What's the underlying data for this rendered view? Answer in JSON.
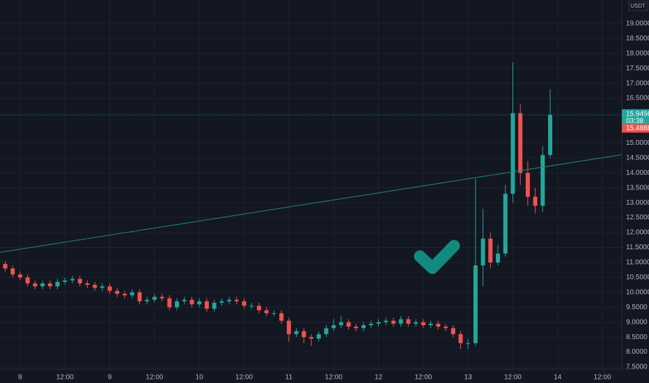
{
  "chart_data": {
    "type": "candlestick",
    "currency": "USDT",
    "up_color": "#26a69a",
    "down_color": "#ef5350",
    "grid": true,
    "open": [
      10.95,
      10.8,
      10.6,
      10.5,
      10.3,
      10.2,
      10.3,
      10.2,
      10.35,
      10.4,
      10.45,
      10.3,
      10.25,
      10.15,
      10.2,
      10.05,
      9.95,
      9.9,
      10.0,
      9.7,
      9.75,
      9.85,
      9.8,
      9.5,
      9.7,
      9.75,
      9.6,
      9.7,
      9.45,
      9.65,
      9.7,
      9.75,
      9.7,
      9.55,
      9.55,
      9.4,
      9.3,
      9.3,
      9.05,
      8.6,
      8.7,
      8.5,
      8.45,
      8.6,
      8.8,
      8.9,
      9.0,
      8.85,
      8.8,
      8.9,
      8.95,
      9.0,
      9.05,
      8.95,
      9.1,
      8.95,
      9.0,
      8.9,
      8.95,
      8.85,
      8.8,
      8.6,
      8.3,
      8.3,
      10.9,
      11.8,
      11.0,
      11.3,
      13.3,
      16.0,
      14.0,
      13.2,
      12.9,
      14.6
    ],
    "high": [
      11.05,
      10.9,
      10.7,
      10.6,
      10.4,
      10.4,
      10.4,
      10.45,
      10.5,
      10.55,
      10.55,
      10.4,
      10.35,
      10.3,
      10.3,
      10.15,
      10.05,
      10.1,
      10.1,
      9.85,
      9.95,
      9.95,
      9.9,
      9.8,
      9.85,
      9.85,
      9.8,
      9.8,
      9.75,
      9.8,
      9.85,
      9.85,
      9.8,
      9.65,
      9.65,
      9.5,
      9.4,
      9.4,
      9.15,
      8.8,
      8.8,
      8.6,
      8.7,
      8.9,
      9.1,
      9.2,
      9.1,
      8.95,
      9.0,
      9.05,
      9.1,
      9.15,
      9.15,
      9.2,
      9.2,
      9.1,
      9.1,
      9.05,
      9.05,
      8.95,
      8.9,
      8.7,
      8.45,
      13.8,
      12.8,
      12.0,
      11.6,
      13.6,
      17.7,
      16.3,
      14.4,
      13.5,
      14.9,
      16.8
    ],
    "low": [
      10.7,
      10.5,
      10.4,
      10.2,
      10.1,
      10.1,
      10.1,
      10.1,
      10.25,
      10.3,
      10.2,
      10.15,
      10.05,
      10.05,
      9.95,
      9.85,
      9.8,
      9.8,
      9.6,
      9.6,
      9.65,
      9.7,
      9.4,
      9.4,
      9.6,
      9.5,
      9.5,
      9.35,
      9.35,
      9.55,
      9.6,
      9.6,
      9.45,
      9.45,
      9.3,
      9.2,
      9.2,
      8.95,
      8.35,
      8.5,
      8.3,
      8.2,
      8.35,
      8.5,
      8.7,
      8.8,
      8.75,
      8.7,
      8.7,
      8.8,
      8.85,
      8.9,
      8.85,
      8.85,
      8.85,
      8.85,
      8.8,
      8.8,
      8.75,
      8.7,
      8.5,
      8.1,
      8.1,
      8.2,
      10.2,
      10.8,
      10.9,
      11.2,
      13.0,
      13.6,
      12.9,
      12.65,
      12.7,
      14.5
    ],
    "close": [
      10.8,
      10.6,
      10.5,
      10.3,
      10.2,
      10.3,
      10.2,
      10.35,
      10.4,
      10.45,
      10.3,
      10.25,
      10.15,
      10.2,
      10.05,
      9.95,
      9.9,
      10.0,
      9.7,
      9.75,
      9.85,
      9.8,
      9.5,
      9.7,
      9.75,
      9.6,
      9.7,
      9.45,
      9.65,
      9.7,
      9.75,
      9.7,
      9.55,
      9.55,
      9.4,
      9.3,
      9.3,
      9.05,
      8.6,
      8.7,
      8.5,
      8.45,
      8.6,
      8.8,
      8.9,
      9.0,
      8.85,
      8.8,
      8.9,
      8.95,
      9.0,
      9.05,
      8.95,
      9.1,
      8.95,
      9.0,
      8.9,
      8.95,
      8.85,
      8.8,
      8.6,
      8.3,
      8.3,
      10.9,
      11.8,
      11.0,
      11.3,
      13.3,
      16.0,
      14.0,
      13.2,
      12.9,
      14.6,
      15.9456
    ],
    "trendline": [
      11.34,
      14.61
    ],
    "last_price": 15.9456,
    "countdown": "03:38",
    "marker_price": 15.4888,
    "xlim": [
      -0.7,
      82.6
    ],
    "xticks": [
      {
        "value": 2,
        "label": "8"
      },
      {
        "value": 8,
        "label": "12:00"
      },
      {
        "value": 14,
        "label": "9"
      },
      {
        "value": 20,
        "label": "12:00"
      },
      {
        "value": 26,
        "label": "10"
      },
      {
        "value": 32,
        "label": "12:00"
      },
      {
        "value": 38,
        "label": "11"
      },
      {
        "value": 44,
        "label": "12:00"
      },
      {
        "value": 50,
        "label": "12"
      },
      {
        "value": 56,
        "label": "12:00"
      },
      {
        "value": 62,
        "label": "13"
      },
      {
        "value": 68,
        "label": "12:00"
      },
      {
        "value": 74,
        "label": "14"
      },
      {
        "value": 80,
        "label": "12:00"
      }
    ],
    "ylim": [
      7.43,
      19.79
    ],
    "yticks": [
      {
        "value": 7.5,
        "label": "7.5000"
      },
      {
        "value": 8,
        "label": "8.0000"
      },
      {
        "value": 8.5,
        "label": "8.5000"
      },
      {
        "value": 9,
        "label": "9.0000"
      },
      {
        "value": 9.5,
        "label": "9.5000"
      },
      {
        "value": 10,
        "label": "10.0000"
      },
      {
        "value": 10.5,
        "label": "10.5000"
      },
      {
        "value": 11,
        "label": "11.0000"
      },
      {
        "value": 11.5,
        "label": "11.5000"
      },
      {
        "value": 12,
        "label": "12.0000"
      },
      {
        "value": 12.5,
        "label": "12.5000"
      },
      {
        "value": 13,
        "label": "13.0000"
      },
      {
        "value": 13.5,
        "label": "13.5000"
      },
      {
        "value": 14,
        "label": "14.0000"
      },
      {
        "value": 14.5,
        "label": "14.5000"
      },
      {
        "value": 15,
        "label": "15.0000"
      },
      {
        "value": 16.5,
        "label": "16.5000"
      },
      {
        "value": 17,
        "label": "17.0000"
      },
      {
        "value": 17.5,
        "label": "17.5000"
      },
      {
        "value": 18,
        "label": "18.0000"
      },
      {
        "value": 18.5,
        "label": "18.5000"
      },
      {
        "value": 19,
        "label": "19.0000"
      }
    ]
  }
}
